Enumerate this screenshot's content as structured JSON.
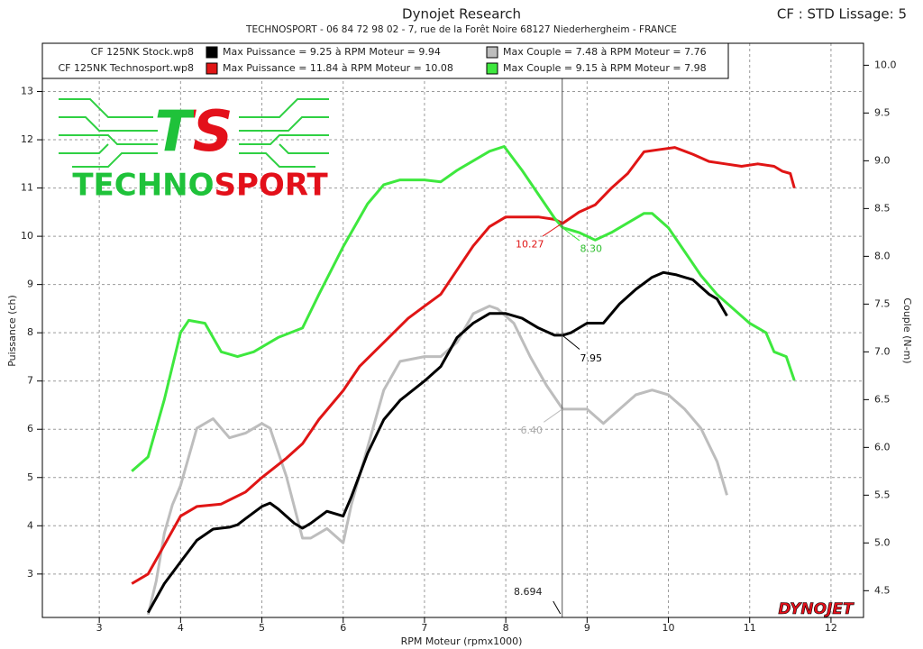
{
  "chart_data": {
    "type": "line",
    "title": "Dynojet Research",
    "subtitle": "TECHNOSPORT - 06 84 72 98 02 - 7, rue de la Forêt Noire 68127 Niederhergheim - FRANCE",
    "corner_note": "CF : STD Lissage: 5",
    "x_label": "RPM Moteur (rpmx1000)",
    "y_label": "Puissance (ch)",
    "y2_label": "Couple (N-m)",
    "logo": {
      "mark": "TS",
      "text": "TECHNOSPORT"
    },
    "brand": "DYNOJET",
    "runs": [
      "CF 125NK Stock.wp8",
      "CF 125NK Technosport.wp8"
    ],
    "xlim": [
      2.3,
      12.4
    ],
    "xticks": [
      3,
      4,
      5,
      6,
      7,
      8,
      9,
      10,
      11,
      12
    ],
    "ylim": [
      2.1,
      14
    ],
    "yticks": [
      3,
      4,
      5,
      6,
      7,
      8,
      9,
      10,
      11,
      12,
      13
    ],
    "y2lim": [
      4.22,
      10.23
    ],
    "y2ticks": [
      {
        "value": 10,
        "label": "10.0"
      },
      9.5,
      {
        "value": 9,
        "label": "9.0"
      },
      8.5,
      {
        "value": 8,
        "label": "8.0"
      },
      7.5,
      {
        "value": 7,
        "label": "7.0"
      },
      6.5,
      {
        "value": 6,
        "label": "6.0"
      },
      5.5,
      {
        "value": 5,
        "label": "5.0"
      },
      4.5
    ],
    "grid": true,
    "series": [
      {
        "name": "Max Puissance = 9.25 à RPM Moteur = 9.94",
        "color": "#000000",
        "axis": "y",
        "x": [
          3.6,
          3.8,
          4.0,
          4.2,
          4.4,
          4.6,
          4.7,
          4.8,
          5.0,
          5.1,
          5.2,
          5.4,
          5.5,
          5.6,
          5.8,
          6.0,
          6.1,
          6.3,
          6.5,
          6.7,
          7.0,
          7.2,
          7.4,
          7.6,
          7.8,
          8.0,
          8.2,
          8.4,
          8.6,
          8.7,
          8.8,
          9.0,
          9.2,
          9.4,
          9.6,
          9.8,
          9.94,
          10.1,
          10.3,
          10.5,
          10.6,
          10.72
        ],
        "values": [
          2.2,
          2.8,
          3.25,
          3.7,
          3.93,
          3.97,
          4.02,
          4.15,
          4.4,
          4.47,
          4.35,
          4.05,
          3.95,
          4.05,
          4.3,
          4.2,
          4.6,
          5.5,
          6.2,
          6.6,
          7.0,
          7.3,
          7.9,
          8.2,
          8.4,
          8.4,
          8.3,
          8.1,
          7.95,
          7.95,
          8.0,
          8.2,
          8.2,
          8.6,
          8.9,
          9.15,
          9.25,
          9.2,
          9.1,
          8.8,
          8.7,
          8.35
        ]
      },
      {
        "name": "Max Puissance = 11.84 à RPM Moteur = 10.08",
        "color": "#e01515",
        "axis": "y",
        "x": [
          3.4,
          3.6,
          3.8,
          4.0,
          4.2,
          4.5,
          4.8,
          5.0,
          5.3,
          5.5,
          5.7,
          6.0,
          6.2,
          6.5,
          6.8,
          7.0,
          7.2,
          7.4,
          7.6,
          7.8,
          8.0,
          8.2,
          8.4,
          8.6,
          8.7,
          8.9,
          9.1,
          9.3,
          9.5,
          9.7,
          9.9,
          10.08,
          10.3,
          10.5,
          10.7,
          10.9,
          11.1,
          11.3,
          11.4,
          11.5,
          11.55
        ],
        "values": [
          2.8,
          3.0,
          3.6,
          4.2,
          4.4,
          4.45,
          4.7,
          5.0,
          5.4,
          5.7,
          6.2,
          6.8,
          7.3,
          7.8,
          8.3,
          8.55,
          8.8,
          9.3,
          9.8,
          10.2,
          10.4,
          10.4,
          10.4,
          10.35,
          10.27,
          10.5,
          10.65,
          11.0,
          11.3,
          11.75,
          11.8,
          11.84,
          11.7,
          11.55,
          11.5,
          11.45,
          11.5,
          11.45,
          11.35,
          11.3,
          11.0
        ]
      },
      {
        "name": "Max Couple = 7.48 à RPM Moteur = 7.76",
        "color": "#bdbdbd",
        "axis": "y2",
        "x": [
          3.6,
          3.7,
          3.8,
          3.9,
          4.0,
          4.2,
          4.4,
          4.6,
          4.8,
          5.0,
          5.1,
          5.3,
          5.5,
          5.6,
          5.8,
          6.0,
          6.1,
          6.3,
          6.5,
          6.7,
          7.0,
          7.2,
          7.4,
          7.6,
          7.8,
          7.9,
          8.1,
          8.3,
          8.5,
          8.7,
          8.9,
          9.0,
          9.2,
          9.4,
          9.6,
          9.8,
          10.0,
          10.2,
          10.4,
          10.6,
          10.72
        ],
        "values": [
          4.25,
          4.6,
          5.1,
          5.4,
          5.6,
          6.2,
          6.3,
          6.1,
          6.15,
          6.25,
          6.2,
          5.7,
          5.05,
          5.05,
          5.15,
          5.0,
          5.4,
          6.0,
          6.6,
          6.9,
          6.95,
          6.95,
          7.1,
          7.4,
          7.48,
          7.45,
          7.3,
          6.95,
          6.65,
          6.4,
          6.4,
          6.4,
          6.25,
          6.4,
          6.55,
          6.6,
          6.55,
          6.4,
          6.2,
          5.85,
          5.5
        ]
      },
      {
        "name": "Max Couple = 9.15 à RPM Moteur = 7.98",
        "color": "#3ee83e",
        "axis": "y2",
        "x": [
          3.4,
          3.6,
          3.8,
          4.0,
          4.1,
          4.3,
          4.5,
          4.7,
          4.9,
          5.2,
          5.5,
          5.7,
          6.0,
          6.3,
          6.5,
          6.7,
          7.0,
          7.2,
          7.4,
          7.6,
          7.8,
          7.98,
          8.2,
          8.4,
          8.6,
          8.7,
          8.9,
          9.1,
          9.3,
          9.5,
          9.7,
          9.8,
          10.0,
          10.2,
          10.4,
          10.6,
          10.8,
          11.0,
          11.2,
          11.3,
          11.45,
          11.55
        ],
        "values": [
          5.75,
          5.9,
          6.5,
          7.2,
          7.33,
          7.3,
          7.0,
          6.95,
          7.0,
          7.15,
          7.25,
          7.6,
          8.1,
          8.55,
          8.75,
          8.8,
          8.8,
          8.78,
          8.9,
          9.0,
          9.1,
          9.15,
          8.9,
          8.65,
          8.4,
          8.3,
          8.25,
          8.17,
          8.25,
          8.35,
          8.45,
          8.45,
          8.3,
          8.05,
          7.8,
          7.6,
          7.45,
          7.3,
          7.2,
          7.0,
          6.95,
          6.7
        ]
      }
    ],
    "cursor": {
      "x": 8.694,
      "values": [
        7.95,
        10.27,
        6.4,
        8.3
      ],
      "value_labels": [
        "7.95",
        "10.27",
        "6.40",
        "8.30"
      ]
    }
  }
}
